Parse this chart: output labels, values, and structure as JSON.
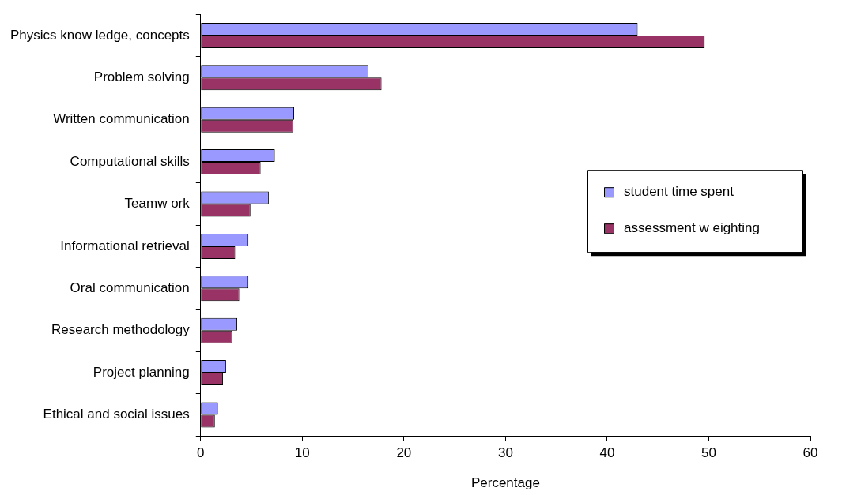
{
  "chart_data": {
    "type": "bar",
    "orientation": "horizontal",
    "xlabel": "Percentage",
    "categories": [
      "Physics know ledge, concepts",
      "Problem solving",
      "Written communication",
      "Computational skills",
      "Teamw ork",
      "Informational retrieval",
      "Oral communication",
      "Research methodology",
      "Project planning",
      "Ethical and social issues"
    ],
    "series": [
      {
        "name": "student time spent",
        "color": "#9999ff",
        "values": [
          43.0,
          16.5,
          9.2,
          7.3,
          6.7,
          4.7,
          4.7,
          3.6,
          2.5,
          1.7
        ]
      },
      {
        "name": "assessment w eighting",
        "color": "#993366",
        "values": [
          49.6,
          17.8,
          9.1,
          5.9,
          4.9,
          3.4,
          3.8,
          3.1,
          2.2,
          1.4
        ]
      }
    ],
    "xlim": [
      0,
      60
    ],
    "xticks": [
      0,
      10,
      20,
      30,
      40,
      50,
      60
    ],
    "grid": false,
    "legend": "right"
  }
}
